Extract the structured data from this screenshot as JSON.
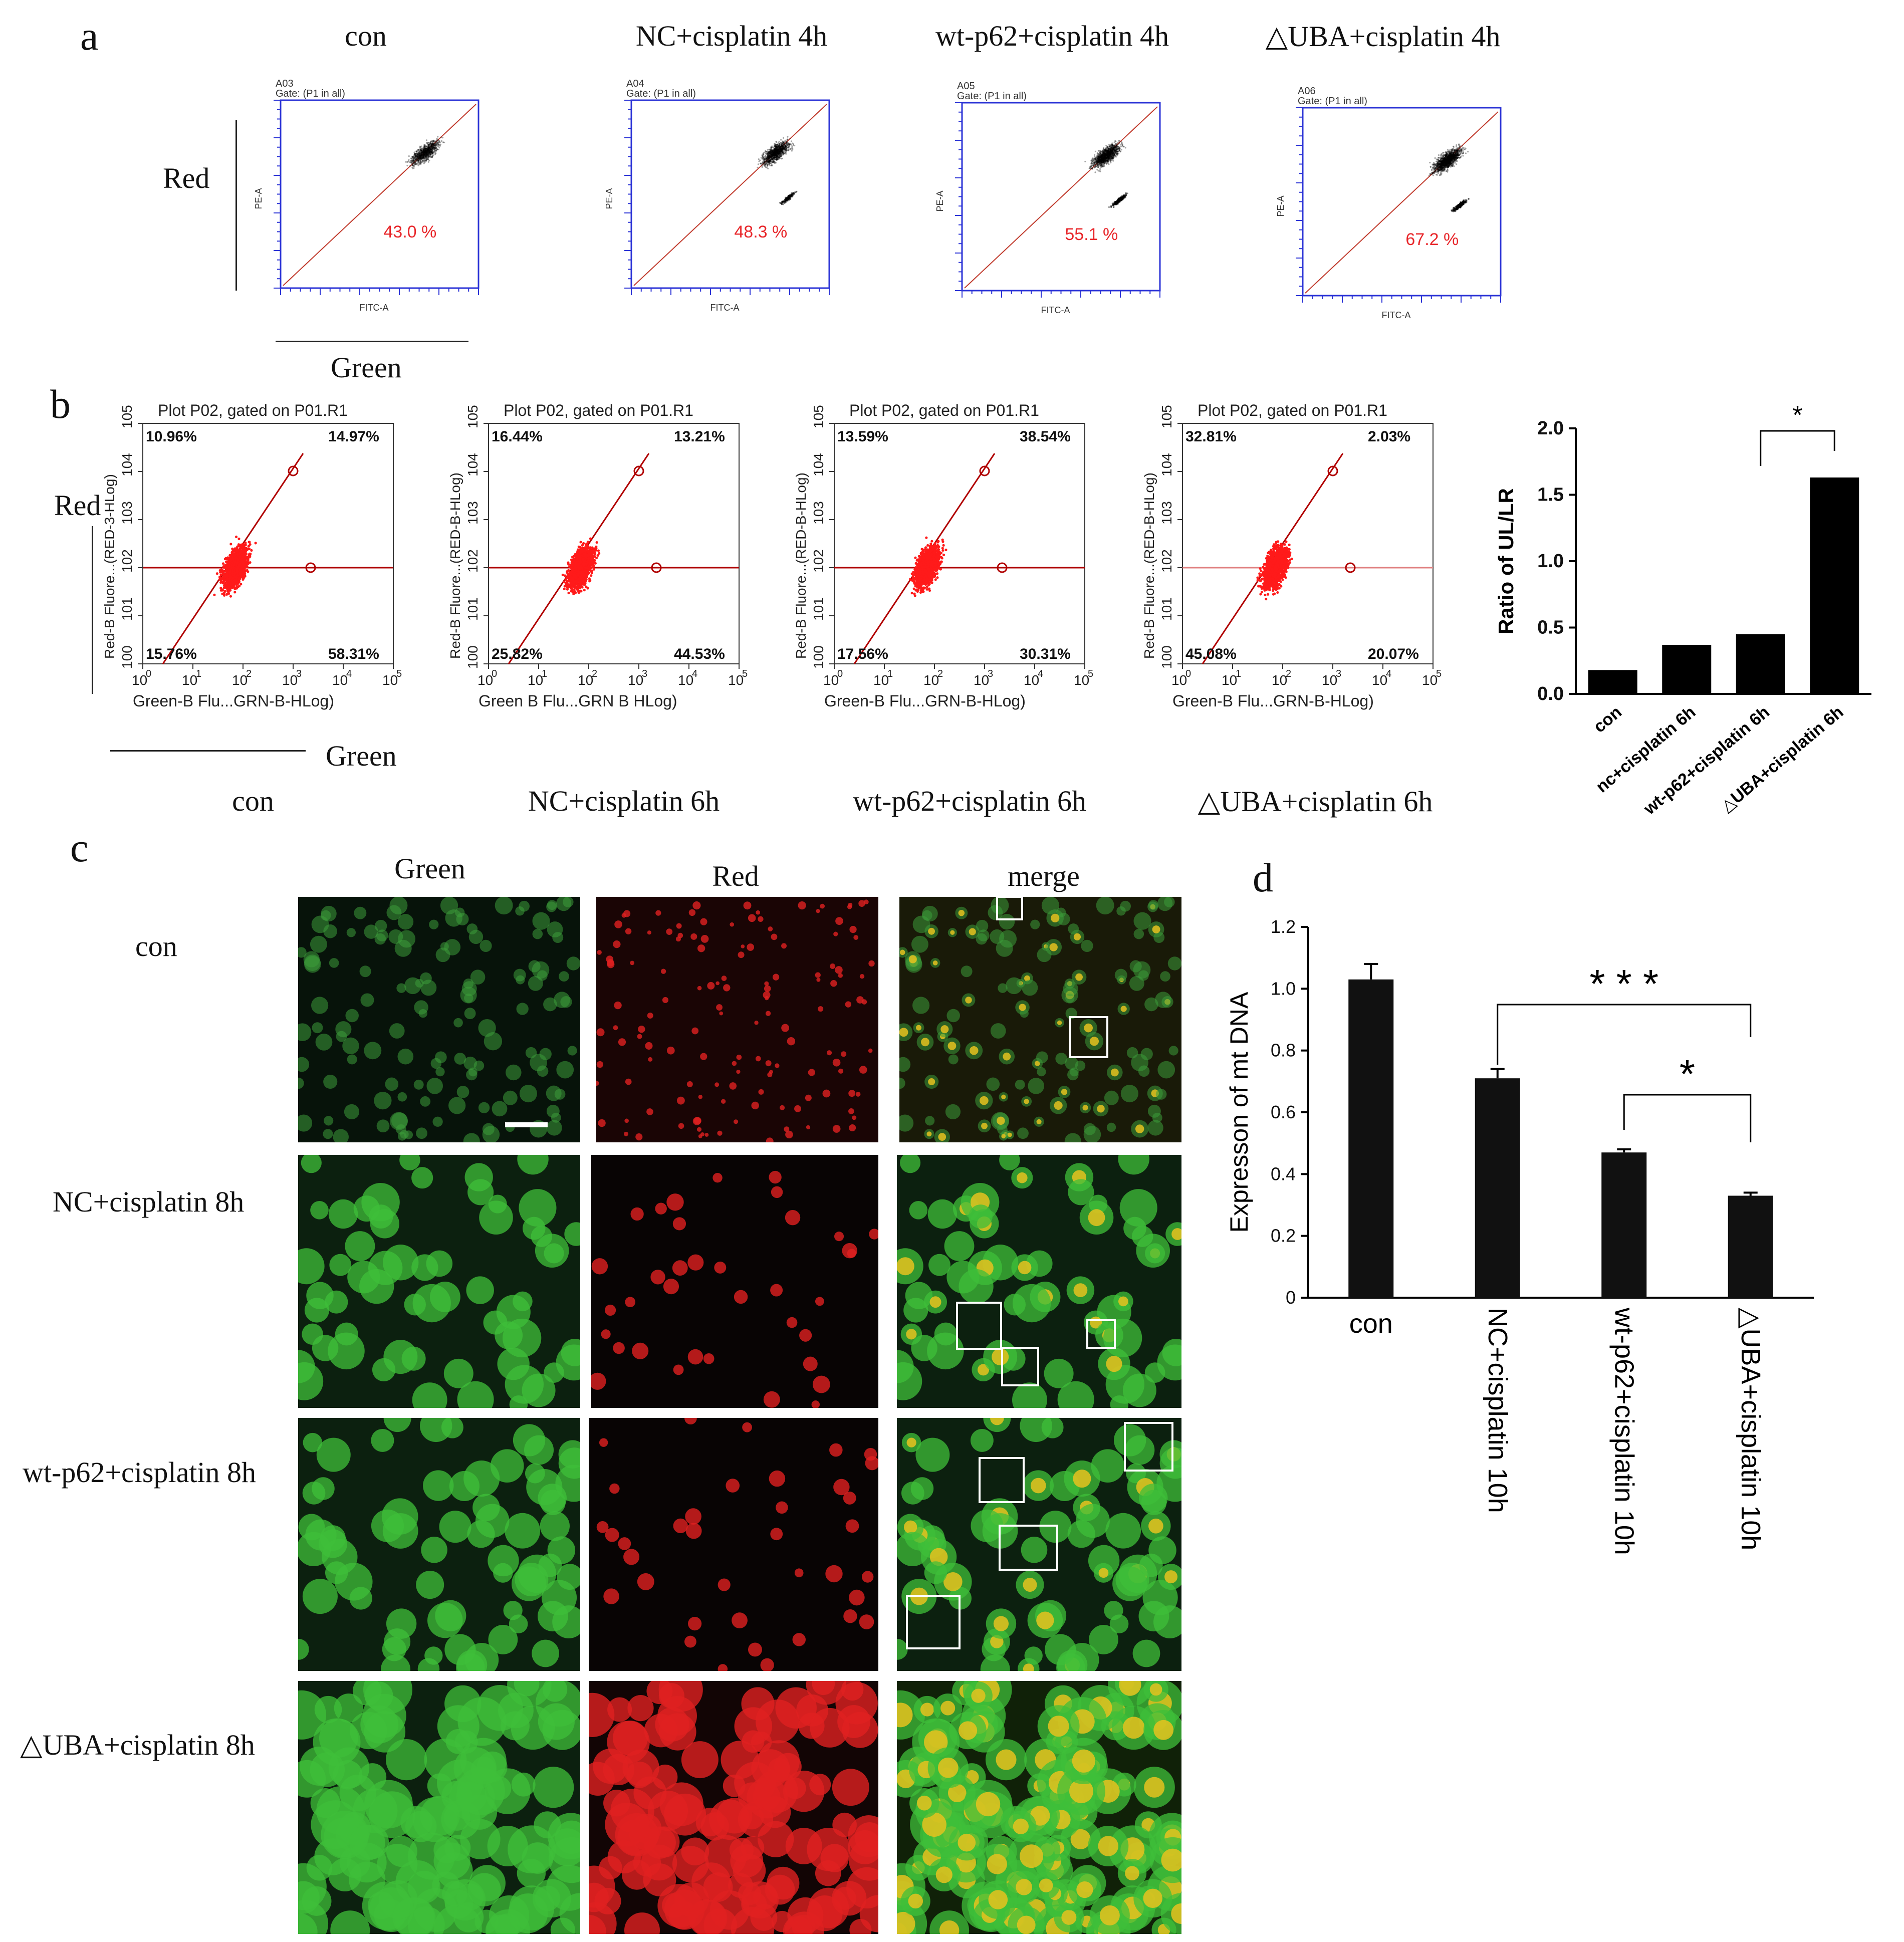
{
  "panels": {
    "a": "a",
    "b": "b",
    "c": "c",
    "d": "d"
  },
  "panel_a": {
    "titles": [
      "con",
      "NC+cisplatin 4h",
      "wt-p62+cisplatin 4h",
      "△UBA+cisplatin 4h"
    ],
    "red_label": "Red",
    "green_label": "Green",
    "plots": [
      {
        "well": "A03",
        "gate": "Gate: (P1 in all)",
        "percent": "43.0 %",
        "ylabel": "PE-A",
        "xlabel": "FITC-A"
      },
      {
        "well": "A04",
        "gate": "Gate: (P1 in all)",
        "percent": "48.3 %",
        "ylabel": "PE-A",
        "xlabel": "FITC-A"
      },
      {
        "well": "A05",
        "gate": "Gate: (P1 in all)",
        "percent": "55.1 %",
        "ylabel": "PE-A",
        "xlabel": "FITC-A"
      },
      {
        "well": "A06",
        "gate": "Gate: (P1 in all)",
        "percent": "67.2 %",
        "ylabel": "PE-A",
        "xlabel": "FITC-A"
      }
    ]
  },
  "panel_b": {
    "titles": [
      "con",
      "NC+cisplatin 6h",
      "wt-p62+cisplatin 6h",
      "△UBA+cisplatin 6h"
    ],
    "red_label": "Red",
    "green_label": "Green",
    "plots": [
      {
        "header": "Plot P02, gated on P01.R1",
        "ylabel": "Red-B Fluore...(RED-3-HLog)",
        "xlabel": "Green-B Flu...GRN-B-HLog)",
        "ul": "10.96%",
        "ur": "14.97%",
        "ll": "15.76%",
        "lr": "58.31%"
      },
      {
        "header": "Plot P02, gated on P01.R1",
        "ylabel": "Red-B Fluore...(RED-B-HLog)",
        "xlabel": "Green B Flu...GRN B HLog)",
        "ul": "16.44%",
        "ur": "13.21%",
        "ll": "25.82%",
        "lr": "44.53%"
      },
      {
        "header": "Plot P02, gated on P01.R1",
        "ylabel": "Red-B Fluore...(RED-B-HLog)",
        "xlabel": "Green-B Flu...GRN-B-HLog)",
        "ul": "13.59%",
        "ur": "38.54%",
        "ll": "17.56%",
        "lr": "30.31%"
      },
      {
        "header": "Plot P02, gated on P01.R1",
        "ylabel": "Red-B Fluore...(RED-B-HLog)",
        "xlabel": "Green-B Flu...GRN-B-HLog)",
        "ul": "32.81%",
        "ur": "2.03%",
        "ll": "45.08%",
        "lr": "20.07%"
      }
    ],
    "tick_labels": [
      "0",
      "1",
      "2",
      "3",
      "4",
      "5"
    ]
  },
  "panel_c": {
    "col_headers": [
      "Green",
      "Red",
      "merge"
    ],
    "row_labels": [
      "con",
      "NC+cisplatin 8h",
      "wt-p62+cisplatin 8h",
      "△UBA+cisplatin 8h"
    ]
  },
  "chart_data": [
    {
      "type": "bar",
      "panel": "b",
      "categories": [
        "con",
        "nc+cisplatin 6h",
        "wt-p62+cisplatin 6h",
        "△UBA+cisplatin 6h"
      ],
      "values": [
        0.18,
        0.37,
        0.45,
        1.63
      ],
      "ylabel": "Ratio of UL/LR",
      "ylim": [
        0,
        2.0
      ],
      "yticks": [
        "0.0",
        "0.5",
        "1.0",
        "1.5",
        "2.0"
      ],
      "annotations": [
        {
          "text": "*",
          "from": 2,
          "to": 3
        }
      ],
      "color": "#000000"
    },
    {
      "type": "bar",
      "panel": "d",
      "categories": [
        "con",
        "NC+cisplatin 10h",
        "wt-p62+cisplatin 10h",
        "△UBA+cisplatin 10h"
      ],
      "values": [
        1.03,
        0.71,
        0.47,
        0.33
      ],
      "errors": [
        0.05,
        0.03,
        0.01,
        0.01
      ],
      "ylabel": "Expresson of mt DNA",
      "ylim": [
        0,
        1.2
      ],
      "yticks": [
        "0",
        "0.2",
        "0.4",
        "0.6",
        "0.8",
        "1.0",
        "1.2"
      ],
      "annotations": [
        {
          "text": "* * *",
          "from": 1,
          "to": 3
        },
        {
          "text": "*",
          "from": 2,
          "to": 3
        }
      ],
      "color": "#111111"
    }
  ],
  "colors": {
    "percent_red": "#e8262a",
    "plot_blue": "#2b33d6",
    "flow_red": "#ff1a1a",
    "diag_red": "#c0392b"
  }
}
